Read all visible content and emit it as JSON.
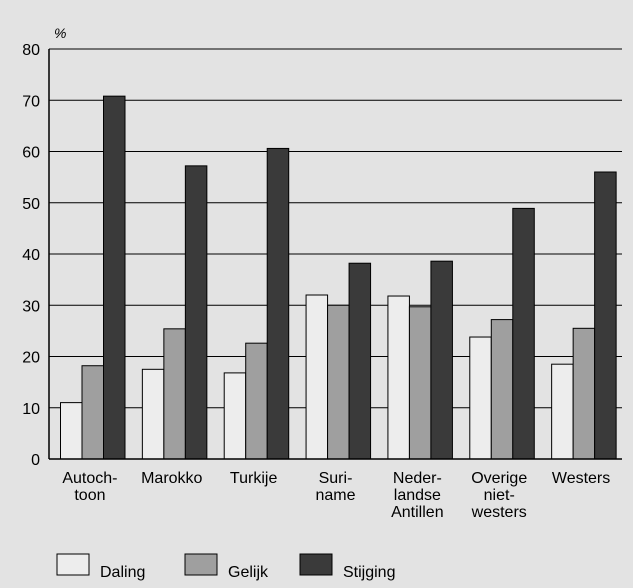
{
  "chart_data": {
    "type": "bar",
    "unit_label": "%",
    "ylim": [
      0,
      80
    ],
    "yticks": [
      "0",
      "10",
      "20",
      "30",
      "40",
      "50",
      "60",
      "70",
      "80"
    ],
    "grid": true,
    "legend_position": "bottom",
    "categories": [
      [
        "Autoch-",
        "toon"
      ],
      [
        "Marokko"
      ],
      [
        "Turkije"
      ],
      [
        "Suri-",
        "name"
      ],
      [
        "Neder-",
        "landse",
        "Antillen"
      ],
      [
        "Overige",
        "niet-",
        "westers"
      ],
      [
        "Westers"
      ]
    ],
    "series": [
      {
        "name": "Daling",
        "color": "#ededed",
        "values": [
          11,
          17.5,
          16.8,
          32,
          31.8,
          23.8,
          18.5
        ]
      },
      {
        "name": "Gelijk",
        "color": "#9f9f9f",
        "values": [
          18.2,
          25.4,
          22.6,
          30,
          29.7,
          27.2,
          25.5
        ]
      },
      {
        "name": "Stijging",
        "color": "#3a3a3a",
        "values": [
          70.8,
          57.2,
          60.6,
          38.2,
          38.6,
          48.9,
          56
        ]
      }
    ]
  }
}
